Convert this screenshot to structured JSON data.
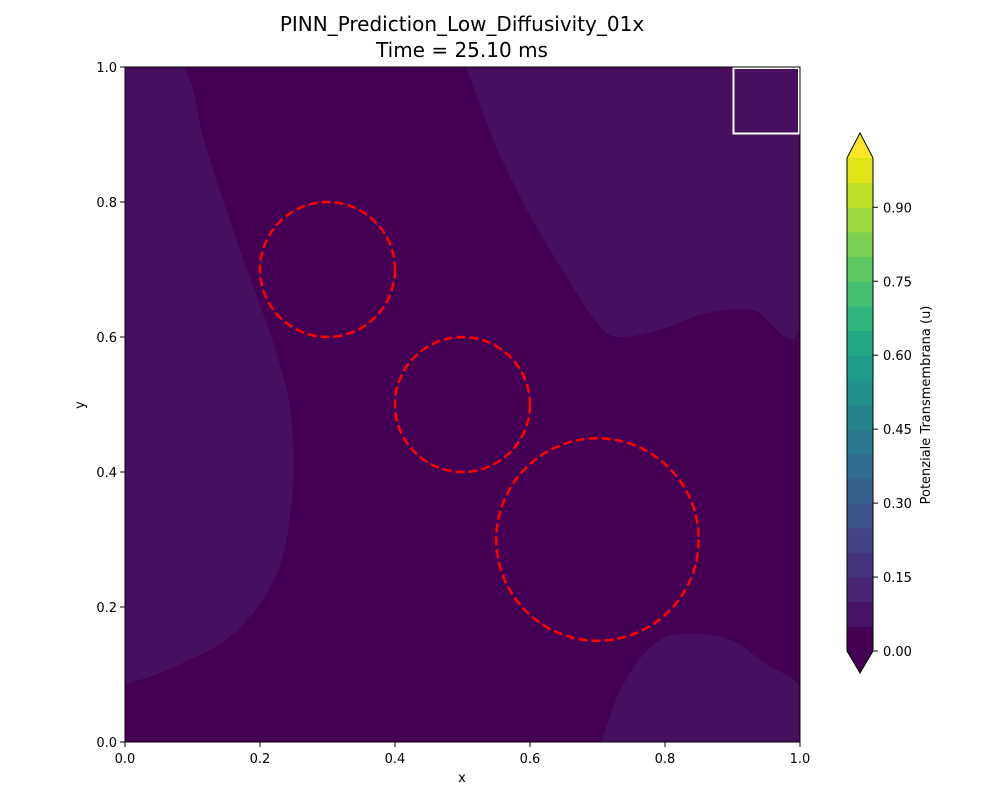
{
  "chart_data": {
    "type": "heatmap",
    "title": "PINN_Prediction_Low_Diffusivity_01x",
    "subtitle": "Time = 25.10 ms",
    "xlabel": "x",
    "ylabel": "y",
    "xlim": [
      0.0,
      1.0
    ],
    "ylim": [
      0.0,
      1.0
    ],
    "x_ticks": [
      "0.0",
      "0.2",
      "0.4",
      "0.6",
      "0.8",
      "1.0"
    ],
    "y_ticks": [
      "0.0",
      "0.2",
      "0.4",
      "0.6",
      "0.8",
      "1.0"
    ],
    "grid": false,
    "colormap": "viridis",
    "colorbar": {
      "label": "Potenziale Transmembrana (u)",
      "ticks": [
        "0.00",
        "0.15",
        "0.30",
        "0.45",
        "0.60",
        "0.75",
        "0.90"
      ],
      "range": [
        0.0,
        1.0
      ],
      "levels": 20,
      "extend": "both",
      "colors": [
        "#440154",
        "#481467",
        "#482576",
        "#463480",
        "#414487",
        "#3b528b",
        "#355f8d",
        "#2f6c8e",
        "#2a788e",
        "#25848e",
        "#21918c",
        "#1e9c89",
        "#22a884",
        "#2fb47c",
        "#44bf70",
        "#5ec962",
        "#7ad151",
        "#9bd93c",
        "#bddf26",
        "#dfe318",
        "#fde725"
      ]
    },
    "field": {
      "background_value": 0.0,
      "background_color": "#440154",
      "regions": [
        {
          "name": "left-band",
          "level": 0.05,
          "color": "#46105e",
          "outline": [
            [
              0.0,
              1.0
            ],
            [
              0.085,
              1.0
            ],
            [
              0.12,
              0.88
            ],
            [
              0.17,
              0.73
            ],
            [
              0.22,
              0.59
            ],
            [
              0.245,
              0.49
            ],
            [
              0.248,
              0.37
            ],
            [
              0.225,
              0.25
            ],
            [
              0.16,
              0.16
            ],
            [
              0.07,
              0.11
            ],
            [
              0.0,
              0.085
            ]
          ]
        },
        {
          "name": "top-right-band",
          "level": 0.05,
          "color": "#46105e",
          "outline": [
            [
              0.505,
              1.0
            ],
            [
              1.0,
              1.0
            ],
            [
              1.0,
              0.62
            ],
            [
              0.93,
              0.64
            ],
            [
              0.86,
              0.635
            ],
            [
              0.79,
              0.61
            ],
            [
              0.73,
              0.6
            ],
            [
              0.7,
              0.62
            ],
            [
              0.66,
              0.68
            ],
            [
              0.6,
              0.78
            ],
            [
              0.55,
              0.88
            ]
          ]
        },
        {
          "name": "bottom-right-band",
          "level": 0.05,
          "color": "#46105e",
          "outline": [
            [
              0.705,
              0.0
            ],
            [
              1.0,
              0.0
            ],
            [
              1.0,
              0.08
            ],
            [
              0.95,
              0.115
            ],
            [
              0.9,
              0.15
            ],
            [
              0.85,
              0.16
            ],
            [
              0.8,
              0.155
            ],
            [
              0.76,
              0.12
            ],
            [
              0.73,
              0.07
            ]
          ]
        }
      ]
    },
    "circles": [
      {
        "cx": 0.3,
        "cy": 0.7,
        "r": 0.1
      },
      {
        "cx": 0.5,
        "cy": 0.5,
        "r": 0.1
      },
      {
        "cx": 0.7,
        "cy": 0.3,
        "r": 0.15
      }
    ],
    "circle_style": {
      "color": "#ff0000",
      "dashed": true
    },
    "box": {
      "x0": 0.9,
      "y0": 0.9,
      "x1": 1.0,
      "y1": 1.0,
      "color": "#ffffff"
    }
  }
}
